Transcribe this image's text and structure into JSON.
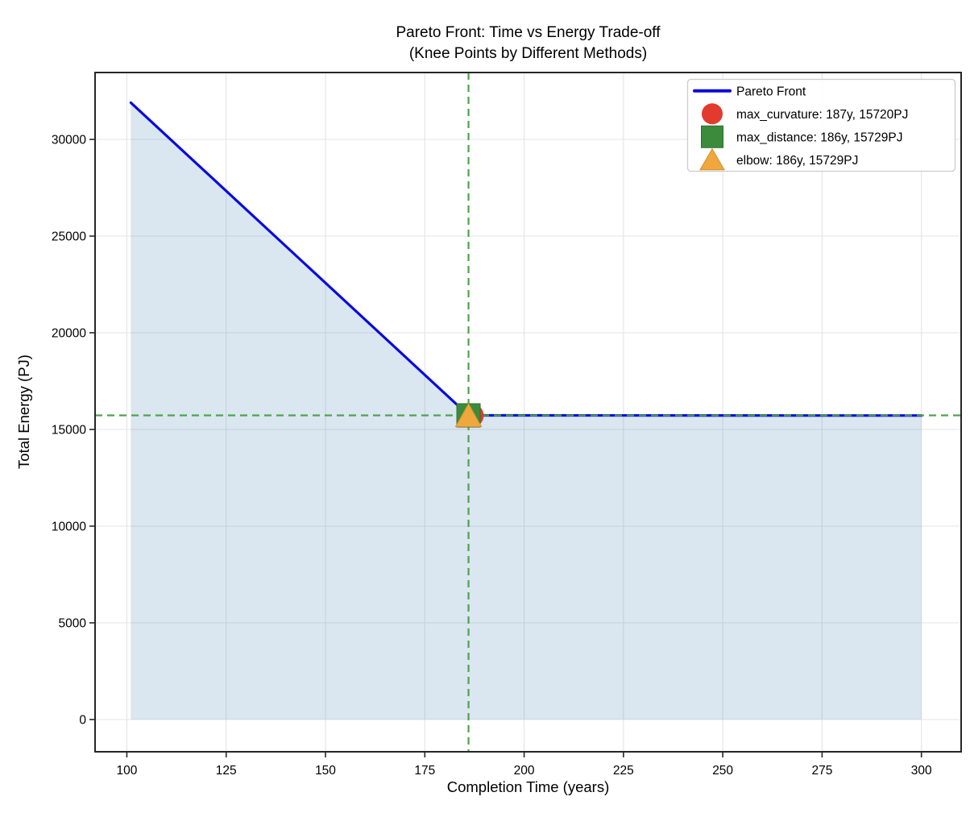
{
  "figure": {
    "title_line1": "Pareto Front: Time vs Energy Trade-off",
    "title_line2": "(Knee Points by Different Methods)",
    "xlabel": "Completion Time (years)",
    "ylabel": "Total Energy (PJ)"
  },
  "chart_data": {
    "type": "line",
    "title": "Pareto Front: Time vs Energy Trade-off\n(Knee Points by Different Methods)",
    "xlabel": "Completion Time (years)",
    "ylabel": "Total Energy (PJ)",
    "xlim": [
      92,
      310
    ],
    "ylim": [
      -1667,
      33458
    ],
    "x_ticks": [
      100,
      125,
      150,
      175,
      200,
      225,
      250,
      275,
      300
    ],
    "y_ticks": [
      0,
      5000,
      10000,
      15000,
      20000,
      25000,
      30000
    ],
    "grid": true,
    "grid_color": "#e4e4e4",
    "spine_color": "#262626",
    "legend_position": "upper right",
    "series": [
      {
        "name": "Pareto Front",
        "color": "#0a0ae0",
        "line_width": 3.2,
        "points": [
          [
            101,
            31900
          ],
          [
            186,
            15729
          ],
          [
            300,
            15720
          ]
        ],
        "fill_to_y": 0,
        "fill_color": "rgba(70,130,180,0.2)"
      }
    ],
    "knee_points": [
      {
        "method": "max_curvature",
        "x": 187,
        "y": 15720,
        "marker": "circle",
        "color": "#e23b2e",
        "label": "max_curvature: 187y, 15720PJ"
      },
      {
        "method": "max_distance",
        "x": 186,
        "y": 15729,
        "marker": "square",
        "color": "#3c8b3c",
        "label": "max_distance: 186y, 15729PJ"
      },
      {
        "method": "elbow",
        "x": 186,
        "y": 15729,
        "marker": "triangle",
        "color": "#efa73e",
        "label": "elbow: 186y, 15729PJ"
      }
    ],
    "reference_lines": {
      "vertical_x": 186,
      "horizontal_y": 15729,
      "color": "#4da34d",
      "style": "dashed"
    },
    "legend": [
      {
        "handle": "line",
        "color": "#0a0ae0",
        "label": "Pareto Front"
      },
      {
        "handle": "circle",
        "color": "#e23b2e",
        "label": "max_curvature: 187y, 15720PJ"
      },
      {
        "handle": "square",
        "color": "#3c8b3c",
        "label": "max_distance: 186y, 15729PJ"
      },
      {
        "handle": "triangle",
        "color": "#efa73e",
        "label": "elbow: 186y, 15729PJ"
      }
    ]
  }
}
